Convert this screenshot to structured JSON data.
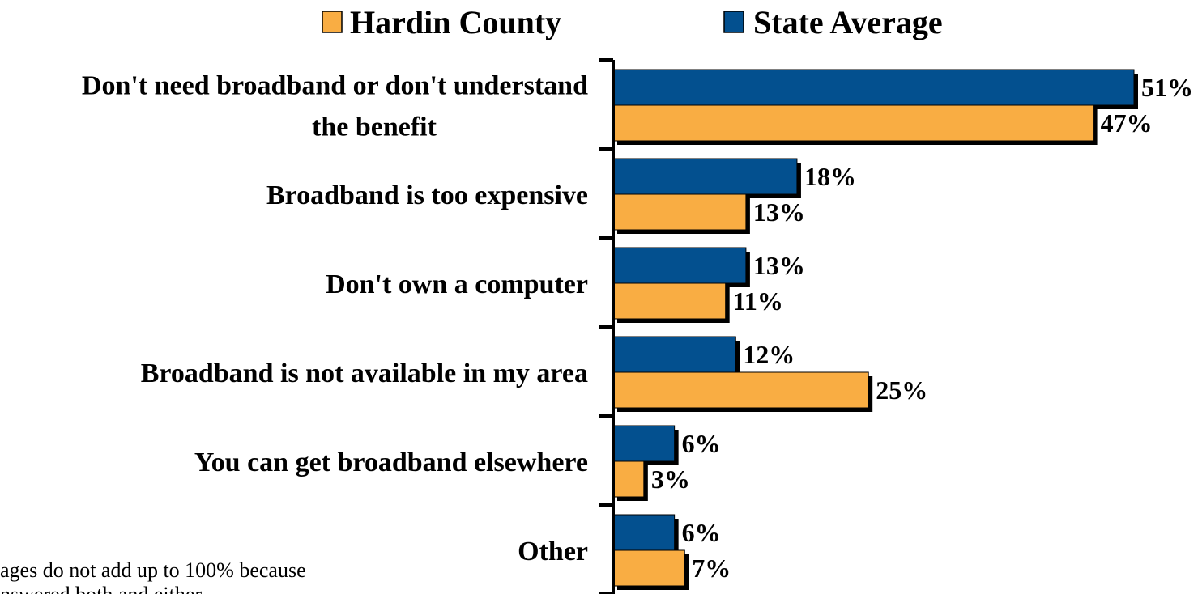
{
  "chart_data": {
    "type": "bar",
    "orientation": "horizontal",
    "categories": [
      [
        "Don't need broadband or don't understand",
        "the benefit"
      ],
      [
        "Broadband is too expensive"
      ],
      [
        "Don't own a computer"
      ],
      [
        "Broadband is not available in my area"
      ],
      [
        "You can get broadband elsewhere"
      ],
      [
        "Other"
      ]
    ],
    "series": [
      {
        "name": "State Average",
        "color": "#03508f",
        "values": [
          51,
          18,
          13,
          12,
          6,
          6
        ]
      },
      {
        "name": "Hardin County",
        "color": "#f9ad43",
        "values": [
          47,
          13,
          11,
          25,
          3,
          7
        ]
      }
    ],
    "legend": [
      {
        "name": "Hardin County",
        "color": "#f9ad43"
      },
      {
        "name": "State Average",
        "color": "#03508f"
      }
    ],
    "legend_position": "top",
    "value_suffix": "%",
    "xlim": [
      0,
      57
    ],
    "grid": false
  },
  "footnote": [
    "ages do not add up to 100% because",
    "nswered both and either"
  ]
}
